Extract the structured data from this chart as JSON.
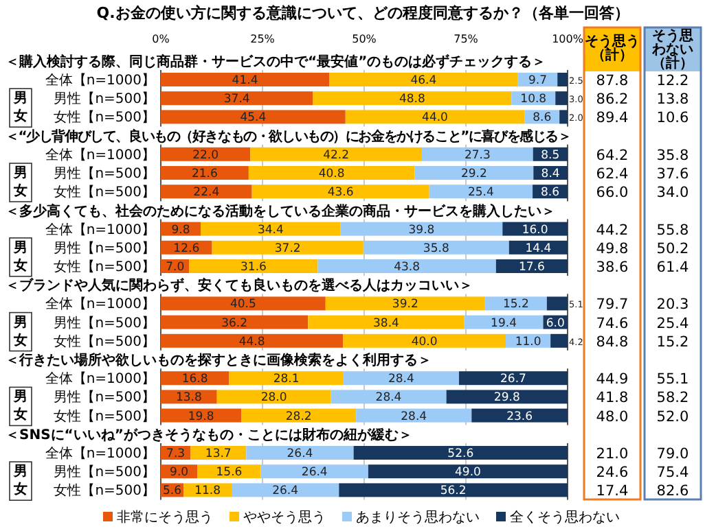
{
  "chart_data": [
    {
      "type": "bar",
      "title": "Q.お金の使い方に関する意識について、どの程度同意するか？（各単一回答）",
      "orientation": "horizontal",
      "stacked": true,
      "grid": "x",
      "legend": "bottom",
      "xlim": [
        0,
        100
      ],
      "xticks": [
        {
          "value": 0,
          "label": "0%"
        },
        {
          "value": 25,
          "label": "25%"
        },
        {
          "value": 50,
          "label": "50%"
        },
        {
          "value": 75,
          "label": "75%"
        },
        {
          "value": 100,
          "label": "100%"
        }
      ],
      "categories": [
        "全体【n=1000】",
        "男性【n=500】",
        "女性【n=500】",
        "全体【n=1000】",
        "男性【n=500】",
        "女性【n=500】",
        "全体【n=1000】",
        "男性【n=500】",
        "女性【n=500】",
        "全体【n=1000】",
        "男性【n=500】",
        "女性【n=500】",
        "全体【n=1000】",
        "男性【n=500】",
        "女性【n=500】",
        "全体【n=1000】",
        "男性【n=500】",
        "女性【n=500】"
      ],
      "annotations": [
        "＜購入検討する際、同じ商品群・サービスの中で“最安値”のものは必ずチェックする＞",
        "男女",
        "＜“少し背伸びして、良いもの（好きなもの・欲しいもの）にお金をかけること”に喜びを感じる＞",
        "男女",
        "＜多少高くても、社会のためになる活動をしている企業の商品・サービスを購入したい＞",
        "男女",
        "＜ブランドや人気に関わらず、安くても良いものを選べる人はカッコいい＞",
        "男女",
        "＜行きたい場所や欲しいものを探すときに画像検索をよく利用する＞",
        "男女",
        "＜SNSに“いいね”がつきそうなもの・ことには財布の紐が緩む＞",
        "男女"
      ],
      "series": [
        {
          "name": "非常にそう思う",
          "color": "#e8580c",
          "values": [
            41.4,
            37.4,
            45.4,
            22.0,
            21.6,
            22.4,
            9.8,
            12.6,
            7.0,
            40.5,
            36.2,
            44.8,
            16.8,
            13.8,
            19.8,
            7.3,
            9.0,
            5.6
          ],
          "value_labels": [
            "41.4",
            "37.4",
            "45.4",
            "22.0",
            "21.6",
            "22.4",
            "9.8",
            "12.6",
            "7.0",
            "40.5",
            "36.2",
            "44.8",
            "16.8",
            "13.8",
            "19.8",
            "7.3",
            "9.0",
            "5.6"
          ]
        },
        {
          "name": "ややそう思う",
          "color": "#ffc000",
          "values": [
            46.4,
            48.8,
            44.0,
            42.2,
            40.8,
            43.6,
            34.4,
            37.2,
            31.6,
            39.2,
            38.4,
            40.0,
            28.1,
            28.0,
            28.2,
            13.7,
            15.6,
            11.8
          ],
          "value_labels": [
            "46.4",
            "48.8",
            "44.0",
            "42.2",
            "40.8",
            "43.6",
            "34.4",
            "37.2",
            "31.6",
            "39.2",
            "38.4",
            "40.0",
            "28.1",
            "28.0",
            "28.2",
            "13.7",
            "15.6",
            "11.8"
          ]
        },
        {
          "name": "あまりそう思わない",
          "color": "#9dcbf7",
          "values": [
            9.7,
            10.8,
            8.6,
            27.3,
            29.2,
            25.4,
            39.8,
            35.8,
            43.8,
            15.2,
            19.4,
            11.0,
            28.4,
            28.4,
            28.4,
            26.4,
            26.4,
            26.4
          ],
          "value_labels": [
            "9.7",
            "10.8",
            "8.6",
            "27.3",
            "29.2",
            "25.4",
            "39.8",
            "35.8",
            "43.8",
            "15.2",
            "19.4",
            "11.0",
            "28.4",
            "28.4",
            "28.4",
            "26.4",
            "26.4",
            "26.4"
          ]
        },
        {
          "name": "全くそう思わない",
          "color": "#17375e",
          "values": [
            2.5,
            3.0,
            2.0,
            8.5,
            8.4,
            8.6,
            16.0,
            14.4,
            17.6,
            5.1,
            6.0,
            4.2,
            26.7,
            29.8,
            23.6,
            52.6,
            49.0,
            56.2
          ],
          "value_labels": [
            "2.5",
            "3.0",
            "2.0",
            "8.5",
            "8.4",
            "8.6",
            "16.0",
            "14.4",
            "17.6",
            "5.1",
            "6.0",
            "4.2",
            "26.7",
            "29.8",
            "23.6",
            "52.6",
            "49.0",
            "56.2"
          ]
        }
      ]
    },
    {
      "type": "other",
      "annotations": [
        "そう思う（計）",
        "そう思わない（計）",
        "87.8",
        "12.2",
        "86.2",
        "13.8",
        "89.4",
        "10.6",
        "64.2",
        "35.8",
        "62.4",
        "37.6",
        "66.0",
        "34.0",
        "44.2",
        "55.8",
        "49.8",
        "50.2",
        "38.6",
        "61.4",
        "79.7",
        "20.3",
        "74.6",
        "25.4",
        "84.8",
        "15.2",
        "44.9",
        "55.1",
        "41.8",
        "58.2",
        "48.0",
        "52.0",
        "21.0",
        "79.0",
        "24.6",
        "75.4",
        "17.4",
        "82.6"
      ]
    }
  ]
}
